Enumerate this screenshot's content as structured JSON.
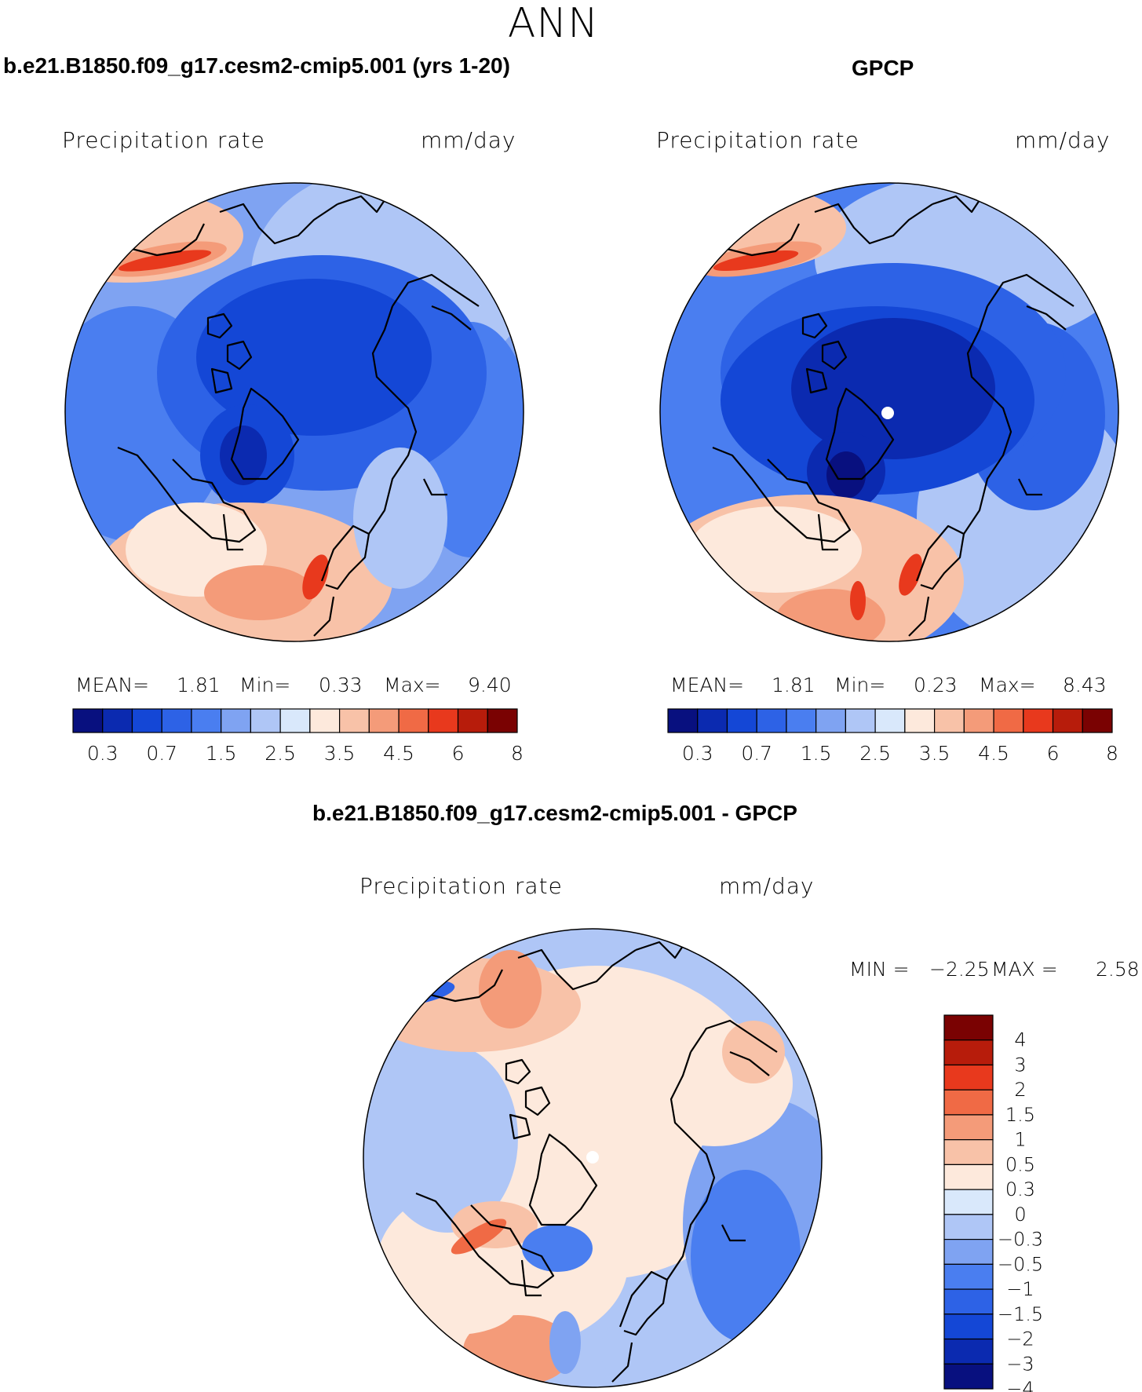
{
  "title": "ANN",
  "panels": [
    {
      "heading": "b.e21.B1850.f09_g17.cesm2-cmip5.001 (yrs 1-20)",
      "variable": "Precipitation rate",
      "units": "mm/day",
      "stats": {
        "mean_label": "MEAN=",
        "mean": "1.81",
        "min_label": "Min=",
        "min": "0.33",
        "max_label": "Max=",
        "max": "9.40"
      }
    },
    {
      "heading": "GPCP",
      "variable": "Precipitation rate",
      "units": "mm/day",
      "stats": {
        "mean_label": "MEAN=",
        "mean": "1.81",
        "min_label": "Min=",
        "min": "0.23",
        "max_label": "Max=",
        "max": "8.43"
      }
    },
    {
      "heading": "b.e21.B1850.f09_g17.cesm2-cmip5.001 - GPCP",
      "variable": "Precipitation rate",
      "units": "mm/day",
      "stats": {
        "min_label": "MIN =",
        "min": "−2.25",
        "max_label": "MAX =",
        "max": "2.58"
      }
    }
  ],
  "chart_data": {
    "type": "heatmap",
    "projection": "north-polar-stereographic",
    "title": "ANN",
    "field": "Precipitation rate (mm/day)",
    "precip_colorbar": {
      "colors": [
        "#08107f",
        "#0b2ab0",
        "#1447d6",
        "#2d62e6",
        "#4a7ef0",
        "#7fa3f2",
        "#afc6f6",
        "#d9e8fb",
        "#fde9dc",
        "#f8c2a8",
        "#f49b79",
        "#f06a45",
        "#e8391d",
        "#b71c0b",
        "#7a0202"
      ],
      "tick_labels": [
        "0.3",
        "0.7",
        "1.5",
        "2.5",
        "3.5",
        "4.5",
        "6",
        "8"
      ]
    },
    "diff_colorbar": {
      "colors": [
        "#7a0202",
        "#b71c0b",
        "#e8391d",
        "#f06a45",
        "#f49b79",
        "#f8c2a8",
        "#fde9dc",
        "#d9e8fb",
        "#afc6f6",
        "#7fa3f2",
        "#4a7ef0",
        "#2d62e6",
        "#1447d6",
        "#0b2ab0",
        "#08107f"
      ],
      "tick_labels": [
        "4",
        "3",
        "2",
        "1.5",
        "1",
        "0.5",
        "0.3",
        "0",
        "−0.3",
        "−0.5",
        "−1",
        "−1.5",
        "−2",
        "−3",
        "−4"
      ]
    }
  }
}
